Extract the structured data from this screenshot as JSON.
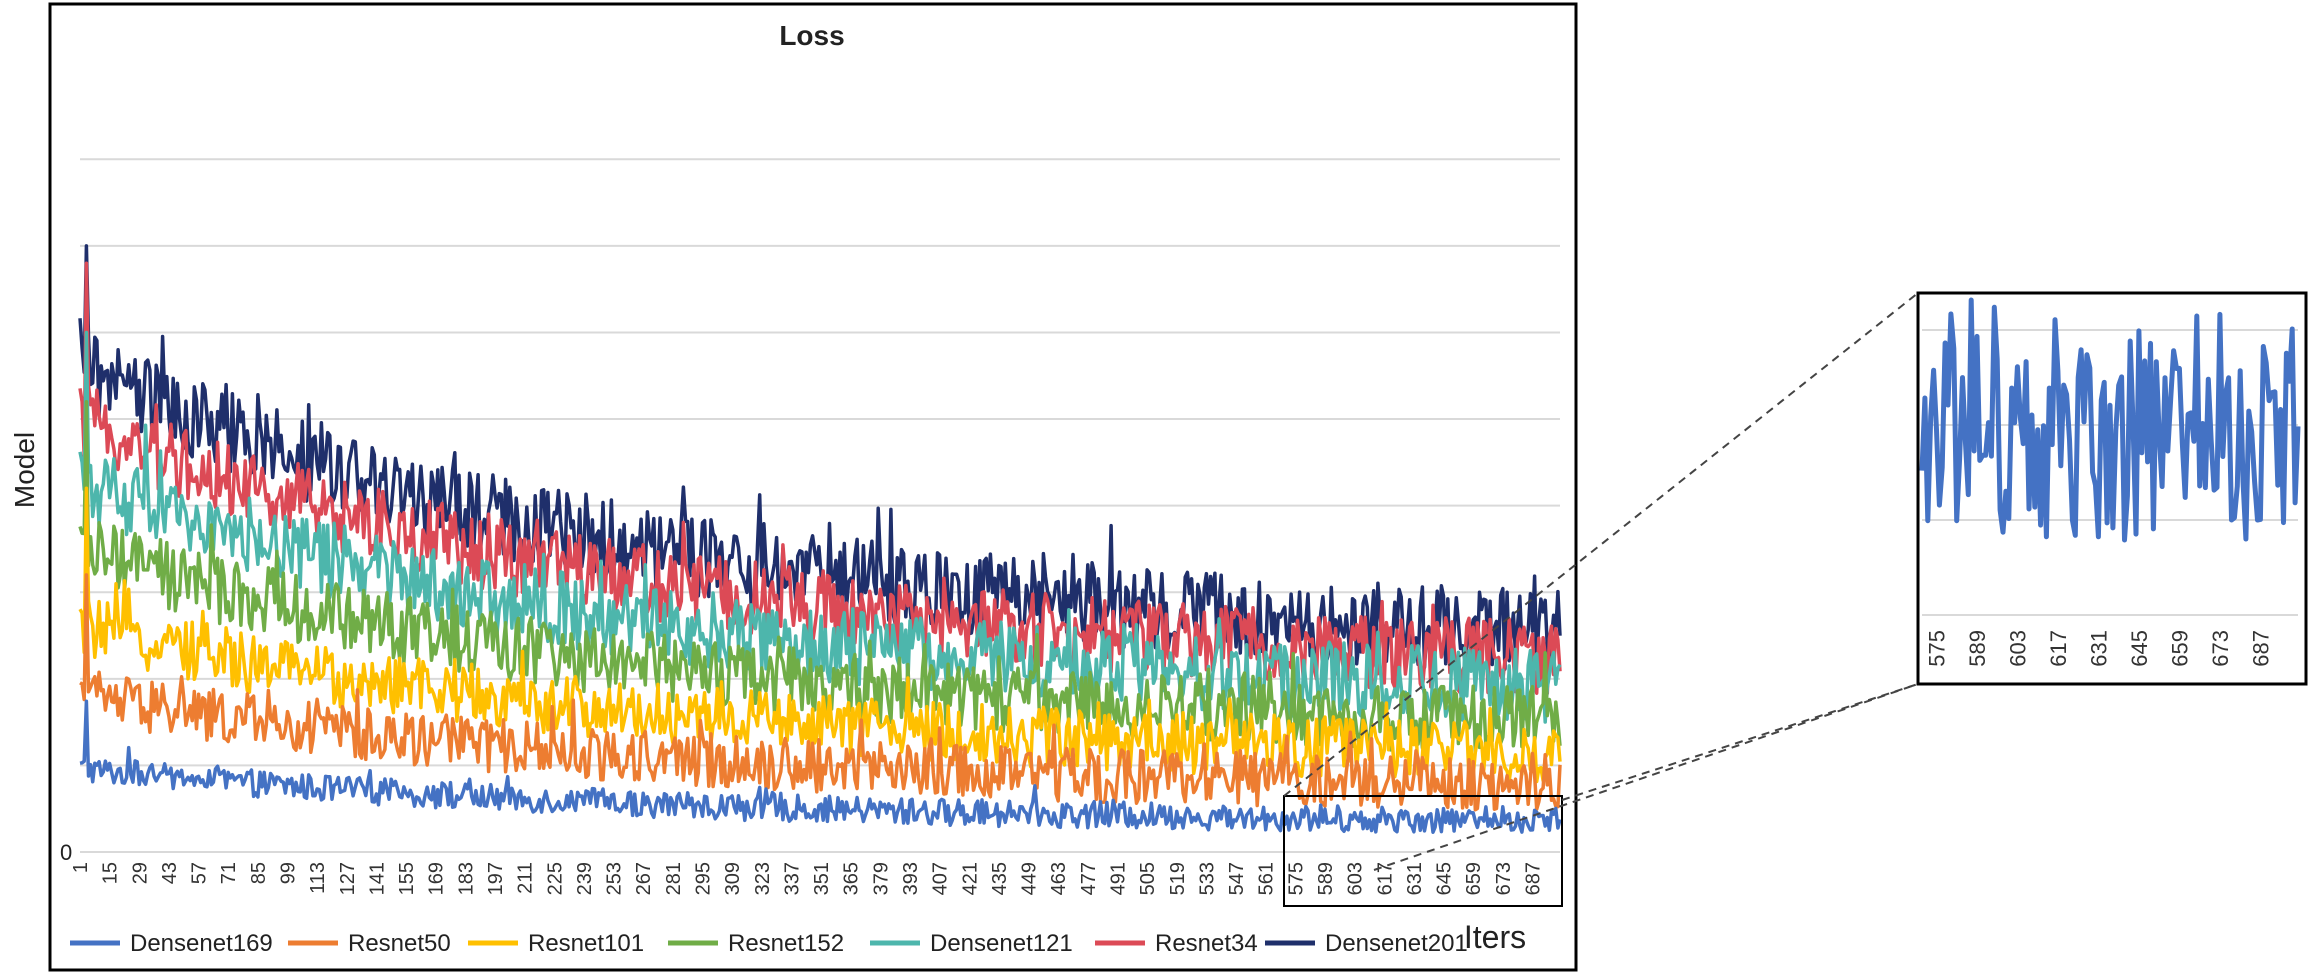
{
  "chart_data": [
    {
      "type": "line",
      "title": "Loss",
      "xlabel": "Iters",
      "ylabel": "Model",
      "y_tick_labels": [
        "0"
      ],
      "x_tick_labels": [
        "1",
        "15",
        "29",
        "43",
        "57",
        "71",
        "85",
        "99",
        "113",
        "127",
        "141",
        "155",
        "169",
        "183",
        "197",
        "211",
        "225",
        "239",
        "253",
        "267",
        "281",
        "295",
        "309",
        "323",
        "337",
        "351",
        "365",
        "379",
        "393",
        "407",
        "421",
        "435",
        "449",
        "463",
        "477",
        "491",
        "505",
        "519",
        "533",
        "547",
        "561",
        "575",
        "589",
        "603",
        "617",
        "631",
        "645",
        "659",
        "673",
        "687"
      ],
      "x_range": [
        1,
        700
      ],
      "y_range": [
        0,
        4.4
      ],
      "grid": "horizontal",
      "legend_position": "bottom",
      "series": [
        {
          "name": "Densenet169",
          "color": "#4472C4",
          "start": 0.48,
          "end": 0.16,
          "noise": 0.035,
          "peak": 0.87,
          "x": [
            1,
            15,
            29,
            43,
            57,
            71,
            85,
            99,
            113,
            127,
            141,
            155,
            169,
            183,
            197,
            211,
            225,
            239,
            253,
            267,
            281,
            295,
            309,
            323,
            337,
            351,
            365,
            379,
            393,
            407,
            421,
            435,
            449,
            463,
            477,
            491,
            505,
            519,
            533,
            547,
            561,
            575,
            589,
            603,
            617,
            631,
            645,
            659,
            673,
            687,
            700
          ]
        },
        {
          "name": "Resnet50",
          "color": "#ED7D31",
          "start": 0.9,
          "end": 0.35,
          "noise": 0.07,
          "peak": 1.6
        },
        {
          "name": "Resnet101",
          "color": "#FFC000",
          "start": 1.3,
          "end": 0.52,
          "noise": 0.08,
          "peak": 2.1
        },
        {
          "name": "Resnet152",
          "color": "#70AD47",
          "start": 1.75,
          "end": 0.68,
          "noise": 0.09,
          "peak": 2.6
        },
        {
          "name": "Densenet121",
          "color": "#4DB6AC",
          "start": 2.15,
          "end": 0.85,
          "noise": 0.1,
          "peak": 3.0
        },
        {
          "name": "Resnet34",
          "color": "#DC4A56",
          "start": 2.5,
          "end": 1.0,
          "noise": 0.1,
          "peak": 3.4
        },
        {
          "name": "Densenet201",
          "color": "#1F2F6B",
          "start": 2.8,
          "end": 1.15,
          "noise": 0.11,
          "peak": 3.5
        }
      ]
    },
    {
      "type": "line",
      "x_tick_labels": [
        "575",
        "589",
        "603",
        "617",
        "631",
        "645",
        "659",
        "673",
        "687"
      ],
      "x_range": [
        570,
        700
      ],
      "series": [
        {
          "name": "Densenet169",
          "color": "#4472C4"
        }
      ]
    }
  ]
}
